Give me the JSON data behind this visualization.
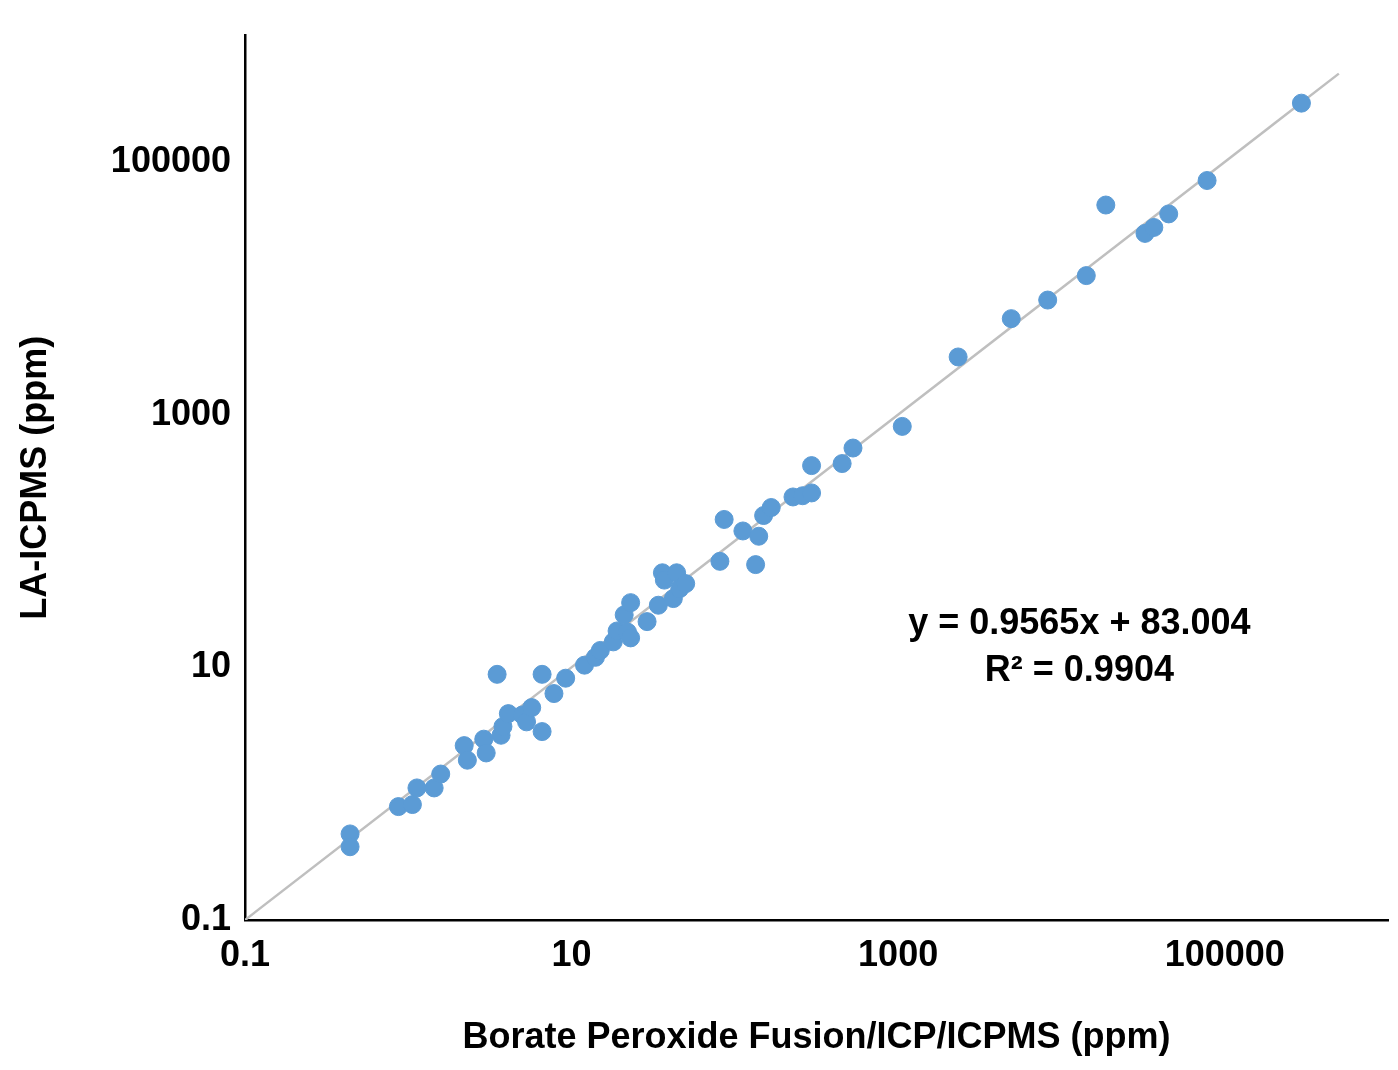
{
  "chart_data": {
    "type": "scatter",
    "xlabel": "Borate Peroxide Fusion/ICP/ICPMS (ppm)",
    "ylabel": "LA-ICPMS (ppm)",
    "annotations": [
      "y = 0.9565x + 83.004",
      "R² = 0.9904"
    ],
    "log": "xy",
    "grid": false,
    "legend": false,
    "marker": "circle",
    "xlim": [
      0.1,
      1000000
    ],
    "ylim": [
      0.1,
      1000000
    ],
    "xticks": [
      0.1,
      10,
      1000,
      100000
    ],
    "yticks": [
      0.1,
      10,
      1000,
      100000
    ],
    "series": [
      {
        "type": "scatter",
        "color": "#5b9bd5",
        "x": [
          0.44,
          0.44,
          0.87,
          1.06,
          1.13,
          1.44,
          1.58,
          2.2,
          2.3,
          2.9,
          3.0,
          3.5,
          3.7,
          3.8,
          4.1,
          5.0,
          5.3,
          5.7,
          6.6,
          6.6,
          7.8,
          9.2,
          12,
          14,
          15,
          18,
          19,
          21,
          23,
          22,
          23,
          29,
          34,
          36,
          37,
          42,
          44,
          46,
          50,
          81,
          86,
          112,
          134,
          140,
          150,
          167,
          227,
          260,
          295,
          295,
          454,
          529,
          1060,
          2330,
          4930,
          8240,
          14200,
          18700,
          32500,
          36800,
          45400,
          78000,
          295000
        ],
        "values": [
          0.48,
          0.38,
          0.79,
          0.82,
          1.11,
          1.11,
          1.43,
          2.4,
          1.84,
          2.7,
          2.1,
          8.8,
          2.9,
          3.4,
          4.3,
          4.2,
          3.7,
          4.8,
          3.1,
          8.8,
          6.2,
          8.2,
          10.4,
          12,
          13.6,
          15.9,
          19.4,
          26,
          32.5,
          19,
          17.1,
          23,
          31,
          56,
          49,
          35,
          56,
          42,
          46,
          69,
          148,
          120,
          65,
          109,
          159,
          184,
          223,
          228,
          240,
          395,
          410,
          544,
          807,
          2860,
          5750,
          8070,
          12600,
          45600,
          27200,
          30300,
          38800,
          71300,
          292000
        ]
      },
      {
        "type": "line",
        "color": "#bfbfbf",
        "line_style": "solid",
        "marker": "none",
        "x": [
          0.1,
          500000
        ],
        "values": [
          0.1,
          500000
        ]
      }
    ]
  }
}
